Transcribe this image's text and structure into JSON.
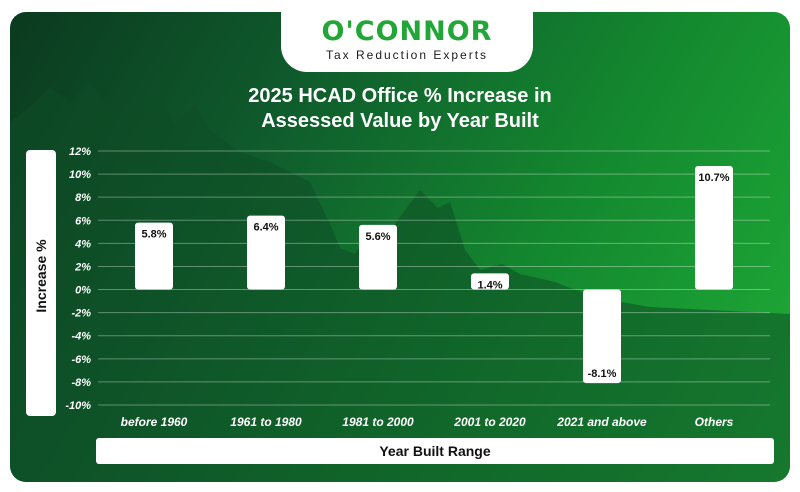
{
  "logo": {
    "mark": "O'CONNOR",
    "tagline": "Tax Reduction Experts"
  },
  "colors": {
    "brand_green": "#22a637",
    "bar": "#ffffff",
    "background_dark": "#0b3a1f",
    "background_light": "#1fae37"
  },
  "chart_data": {
    "type": "bar",
    "title_line1": "2025 HCAD Office % Increase in",
    "title_line2": "Assessed Value by Year Built",
    "xlabel": "Year Built Range",
    "ylabel": "Increase %",
    "categories": [
      "before 1960",
      "1961 to 1980",
      "1981 to 2000",
      "2001 to 2020",
      "2021 and above",
      "Others"
    ],
    "values": [
      5.8,
      6.4,
      5.6,
      1.4,
      -8.1,
      10.7
    ],
    "data_labels": [
      "5.8%",
      "6.4%",
      "5.6%",
      "1.4%",
      "-8.1%",
      "10.7%"
    ],
    "yticks": [
      "12%",
      "10%",
      "8%",
      "6%",
      "4%",
      "2%",
      "0%",
      "-2%",
      "-4%",
      "-6%",
      "-8%",
      "-10%"
    ],
    "ylim": [
      -10,
      12
    ],
    "grid": true,
    "legend": "none"
  }
}
